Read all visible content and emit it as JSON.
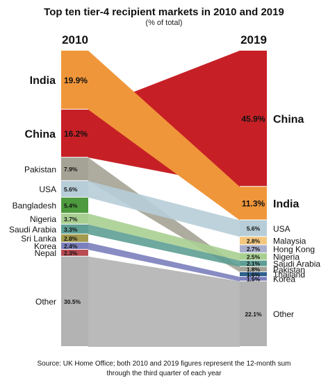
{
  "chart_data": {
    "type": "slope",
    "title": "Top ten tier-4 recipient markets in 2010 and 2019",
    "subtitle": "(% of total)",
    "years": [
      "2010",
      "2019"
    ],
    "source": [
      "Source: UK Home Office; both 2010 and 2019 figures represent the 12-month sum",
      "through the third quarter of each year"
    ],
    "series": [
      {
        "name": "India",
        "v2010": 19.9,
        "v2019": 11.3,
        "label2010": "19.9%",
        "label2019": "11.3%",
        "color": "#F0963A"
      },
      {
        "name": "China",
        "v2010": 16.2,
        "v2019": 45.9,
        "label2010": "16.2%",
        "label2019": "45.9%",
        "color": "#C62026"
      },
      {
        "name": "Pakistan",
        "v2010": 7.9,
        "v2019": 1.8,
        "label2010": "7.9%",
        "label2019": "1.8%",
        "color": "#A4A395"
      },
      {
        "name": "USA",
        "v2010": 5.6,
        "v2019": 5.6,
        "label2010": "5.6%",
        "label2019": "5.6%",
        "color": "#B7CDD8"
      },
      {
        "name": "Bangladesh",
        "v2010": 5.4,
        "v2019": null,
        "label2010": "5.4%",
        "label2019": "",
        "color": "#4E9A3E"
      },
      {
        "name": "Nigeria",
        "v2010": 3.7,
        "v2019": 2.5,
        "label2010": "3.7%",
        "label2019": "2.5%",
        "color": "#A8CF92"
      },
      {
        "name": "Saudi Arabia",
        "v2010": 3.3,
        "v2019": 2.1,
        "label2010": "3.3%",
        "label2019": "2.1%",
        "color": "#5E9E94"
      },
      {
        "name": "Sri Lanka",
        "v2010": 2.8,
        "v2019": null,
        "label2010": "2.8%",
        "label2019": "",
        "color": "#A29A4E"
      },
      {
        "name": "Korea",
        "v2010": 2.4,
        "v2019": 1.5,
        "label2010": "2.4%",
        "label2019": "1.5%",
        "color": "#7B7FBD"
      },
      {
        "name": "Nepal",
        "v2010": 2.3,
        "v2019": null,
        "label2010": "2.3%",
        "label2019": "",
        "color": "#B84A52"
      },
      {
        "name": "Malaysia",
        "v2010": null,
        "v2019": 2.8,
        "label2010": "",
        "label2019": "2.8%",
        "color": "#F4C77F"
      },
      {
        "name": "Hong Kong",
        "v2010": null,
        "v2019": 2.7,
        "label2010": "",
        "label2019": "2.7%",
        "color": "#A9AECB"
      },
      {
        "name": "Thailand",
        "v2010": null,
        "v2019": 1.6,
        "label2010": "",
        "label2019": "1.6%",
        "color": "#2E5E8C"
      },
      {
        "name": "Other",
        "v2010": 30.5,
        "v2019": 22.1,
        "label2010": "30.5%",
        "label2019": "22.1%",
        "color": "#B3B3B3"
      }
    ]
  }
}
